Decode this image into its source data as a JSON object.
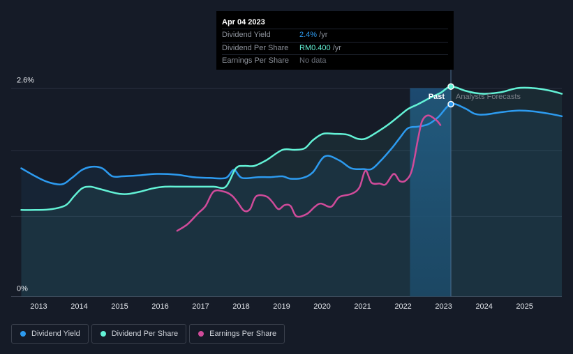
{
  "tooltip": {
    "date": "Apr 04 2023",
    "rows": [
      {
        "label": "Dividend Yield",
        "value": "2.4%",
        "unit": " /yr",
        "color": "#2d9bf0"
      },
      {
        "label": "Dividend Per Share",
        "value": "RM0.400",
        "unit": " /yr",
        "color": "#63f2d6"
      },
      {
        "label": "Earnings Per Share",
        "value": "No data",
        "unit": "",
        "color": "#6b707a"
      }
    ]
  },
  "legend": [
    {
      "label": "Dividend Yield",
      "color": "#2d9bf0"
    },
    {
      "label": "Dividend Per Share",
      "color": "#63f2d6"
    },
    {
      "label": "Earnings Per Share",
      "color": "#d04b9a"
    }
  ],
  "chart_data": {
    "type": "line",
    "y_axis": {
      "top_label": "2.6%",
      "bottom_label": "0%",
      "ylim": [
        0,
        2.6
      ],
      "unit": "%"
    },
    "x_ticks": [
      "2013",
      "2014",
      "2015",
      "2016",
      "2017",
      "2018",
      "2019",
      "2020",
      "2021",
      "2022",
      "2023",
      "2024",
      "2025"
    ],
    "xlim": [
      2012.4,
      2026.0
    ],
    "past_label": "Past",
    "forecast_label": "Analysts Forecasts",
    "past_range": [
      2022.25,
      2023.26
    ],
    "highlight_x": 2023.26,
    "series": [
      {
        "name": "Dividend Yield",
        "color": "#2d9bf0",
        "area": true,
        "points": [
          [
            2012.65,
            1.6
          ],
          [
            2013.0,
            1.5
          ],
          [
            2013.3,
            1.43
          ],
          [
            2013.65,
            1.4
          ],
          [
            2013.9,
            1.48
          ],
          [
            2014.15,
            1.58
          ],
          [
            2014.4,
            1.62
          ],
          [
            2014.65,
            1.6
          ],
          [
            2014.9,
            1.5
          ],
          [
            2015.15,
            1.5
          ],
          [
            2015.5,
            1.51
          ],
          [
            2016.0,
            1.53
          ],
          [
            2016.5,
            1.52
          ],
          [
            2016.9,
            1.49
          ],
          [
            2017.3,
            1.48
          ],
          [
            2017.7,
            1.48
          ],
          [
            2017.9,
            1.58
          ],
          [
            2018.1,
            1.48
          ],
          [
            2018.5,
            1.49
          ],
          [
            2018.8,
            1.49
          ],
          [
            2019.1,
            1.5
          ],
          [
            2019.3,
            1.47
          ],
          [
            2019.6,
            1.48
          ],
          [
            2019.85,
            1.55
          ],
          [
            2020.15,
            1.75
          ],
          [
            2020.5,
            1.7
          ],
          [
            2020.8,
            1.6
          ],
          [
            2021.1,
            1.59
          ],
          [
            2021.3,
            1.59
          ],
          [
            2021.5,
            1.68
          ],
          [
            2021.8,
            1.85
          ],
          [
            2022.0,
            1.98
          ],
          [
            2022.2,
            2.1
          ],
          [
            2022.45,
            2.12
          ],
          [
            2022.7,
            2.15
          ],
          [
            2022.95,
            2.24
          ],
          [
            2023.26,
            2.4
          ],
          [
            2023.6,
            2.35
          ],
          [
            2023.85,
            2.28
          ],
          [
            2024.1,
            2.27
          ],
          [
            2024.5,
            2.3
          ],
          [
            2024.9,
            2.32
          ],
          [
            2025.3,
            2.31
          ],
          [
            2025.7,
            2.28
          ],
          [
            2026.0,
            2.25
          ]
        ]
      },
      {
        "name": "Dividend Per Share",
        "color": "#63f2d6",
        "area": true,
        "points": [
          [
            2012.65,
            1.08
          ],
          [
            2013.0,
            1.08
          ],
          [
            2013.4,
            1.09
          ],
          [
            2013.75,
            1.14
          ],
          [
            2013.95,
            1.25
          ],
          [
            2014.15,
            1.35
          ],
          [
            2014.35,
            1.37
          ],
          [
            2014.6,
            1.34
          ],
          [
            2014.9,
            1.3
          ],
          [
            2015.1,
            1.28
          ],
          [
            2015.3,
            1.28
          ],
          [
            2015.6,
            1.31
          ],
          [
            2015.9,
            1.35
          ],
          [
            2016.2,
            1.37
          ],
          [
            2016.6,
            1.37
          ],
          [
            2017.0,
            1.37
          ],
          [
            2017.4,
            1.37
          ],
          [
            2017.7,
            1.37
          ],
          [
            2017.95,
            1.6
          ],
          [
            2018.15,
            1.63
          ],
          [
            2018.4,
            1.63
          ],
          [
            2018.7,
            1.7
          ],
          [
            2019.1,
            1.83
          ],
          [
            2019.4,
            1.83
          ],
          [
            2019.65,
            1.85
          ],
          [
            2019.85,
            1.95
          ],
          [
            2020.1,
            2.03
          ],
          [
            2020.4,
            2.03
          ],
          [
            2020.7,
            2.02
          ],
          [
            2020.95,
            1.97
          ],
          [
            2021.15,
            1.97
          ],
          [
            2021.4,
            2.04
          ],
          [
            2021.7,
            2.14
          ],
          [
            2022.0,
            2.26
          ],
          [
            2022.2,
            2.34
          ],
          [
            2022.45,
            2.4
          ],
          [
            2022.75,
            2.48
          ],
          [
            2023.0,
            2.54
          ],
          [
            2023.26,
            2.62
          ],
          [
            2023.6,
            2.57
          ],
          [
            2023.85,
            2.54
          ],
          [
            2024.1,
            2.53
          ],
          [
            2024.5,
            2.55
          ],
          [
            2024.9,
            2.6
          ],
          [
            2025.3,
            2.6
          ],
          [
            2025.7,
            2.57
          ],
          [
            2026.0,
            2.53
          ]
        ]
      },
      {
        "name": "Earnings Per Share",
        "color": "#d04b9a",
        "area": false,
        "points": [
          [
            2016.5,
            0.82
          ],
          [
            2016.75,
            0.9
          ],
          [
            2017.0,
            1.03
          ],
          [
            2017.2,
            1.13
          ],
          [
            2017.4,
            1.31
          ],
          [
            2017.65,
            1.31
          ],
          [
            2017.85,
            1.26
          ],
          [
            2018.0,
            1.17
          ],
          [
            2018.15,
            1.07
          ],
          [
            2018.3,
            1.09
          ],
          [
            2018.45,
            1.25
          ],
          [
            2018.7,
            1.25
          ],
          [
            2018.85,
            1.18
          ],
          [
            2019.0,
            1.09
          ],
          [
            2019.15,
            1.14
          ],
          [
            2019.3,
            1.13
          ],
          [
            2019.45,
            1.0
          ],
          [
            2019.7,
            1.03
          ],
          [
            2019.9,
            1.12
          ],
          [
            2020.05,
            1.16
          ],
          [
            2020.3,
            1.12
          ],
          [
            2020.5,
            1.24
          ],
          [
            2020.8,
            1.28
          ],
          [
            2021.0,
            1.36
          ],
          [
            2021.15,
            1.57
          ],
          [
            2021.3,
            1.42
          ],
          [
            2021.5,
            1.41
          ],
          [
            2021.65,
            1.4
          ],
          [
            2021.85,
            1.53
          ],
          [
            2022.0,
            1.44
          ],
          [
            2022.15,
            1.45
          ],
          [
            2022.3,
            1.58
          ],
          [
            2022.45,
            1.97
          ],
          [
            2022.55,
            2.19
          ],
          [
            2022.7,
            2.26
          ],
          [
            2022.9,
            2.2
          ],
          [
            2023.0,
            2.14
          ]
        ]
      }
    ]
  }
}
